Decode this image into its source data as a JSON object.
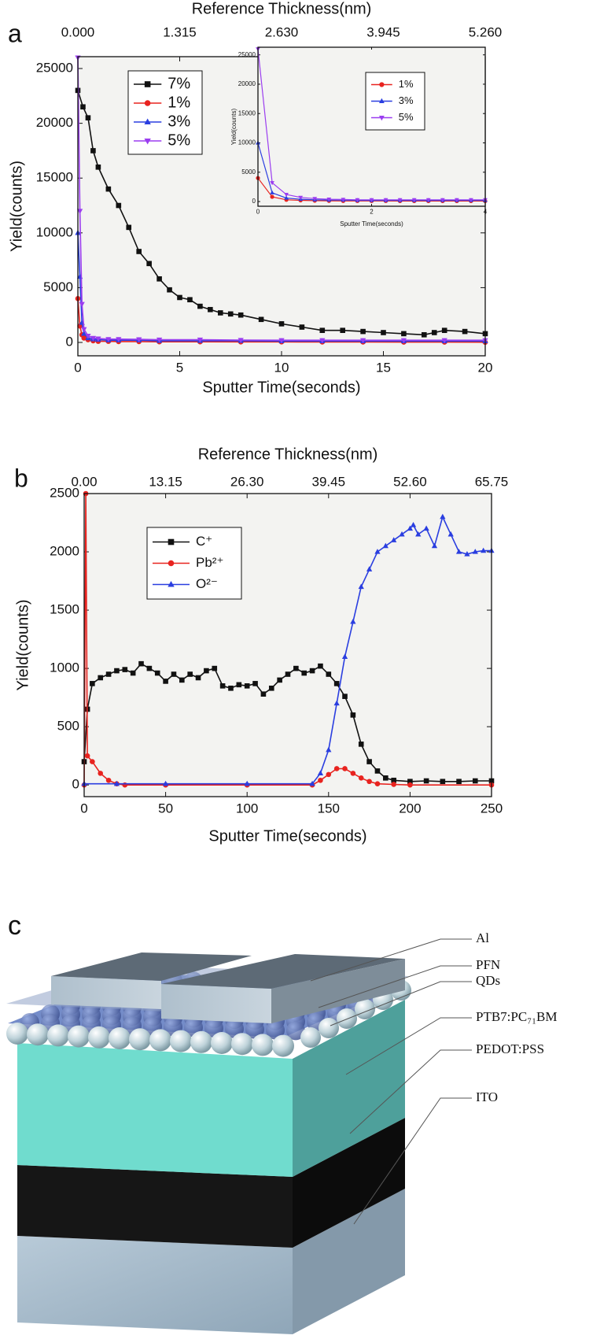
{
  "chart_data": [
    {
      "type": "line",
      "panel_label": "a",
      "xlabel": "Sputter Time(seconds)",
      "ylabel": "Yield(counts)",
      "x2label": "Reference Thickness(nm)",
      "xlim": [
        0,
        20
      ],
      "ylim": [
        -1220,
        26080
      ],
      "x2lim": [
        0,
        5.26
      ],
      "xticks": [
        0,
        5,
        10,
        15,
        20
      ],
      "yticks": [
        0,
        5000,
        10000,
        15000,
        20000,
        25000
      ],
      "x2ticks": [
        {
          "value": 0,
          "label": "0.000"
        },
        1.315,
        {
          "value": 2.63,
          "label": "2.630"
        },
        3.945,
        {
          "value": 5.26,
          "label": "5.260"
        }
      ],
      "legend": "upper left",
      "series": [
        {
          "name": "7%",
          "color": "#111111",
          "marker": "square",
          "x": [
            0,
            0.25,
            0.5,
            0.75,
            1,
            1.5,
            2,
            2.5,
            3,
            3.5,
            4,
            4.5,
            5,
            5.5,
            6,
            6.5,
            7,
            7.5,
            8,
            9,
            10,
            11,
            12,
            13,
            14,
            15,
            16,
            17,
            17.5,
            18,
            19,
            20
          ],
          "values": [
            23000,
            21500,
            20500,
            17500,
            16000,
            14000,
            12500,
            10500,
            8300,
            7200,
            5800,
            4800,
            4100,
            3900,
            3300,
            3000,
            2700,
            2600,
            2500,
            2100,
            1700,
            1400,
            1100,
            1100,
            1000,
            900,
            800,
            700,
            900,
            1100,
            1000,
            800
          ]
        },
        {
          "name": "1%",
          "color": "#e8231f",
          "marker": "circle",
          "x": [
            0,
            0.1,
            0.2,
            0.3,
            0.5,
            0.75,
            1,
            1.5,
            2,
            3,
            4,
            6,
            8,
            10,
            12,
            14,
            16,
            18,
            20
          ],
          "values": [
            4000,
            1500,
            700,
            400,
            250,
            150,
            100,
            100,
            80,
            80,
            60,
            60,
            50,
            50,
            40,
            40,
            30,
            30,
            20
          ]
        },
        {
          "name": "3%",
          "color": "#2a3ee0",
          "marker": "triangle",
          "x": [
            0,
            0.1,
            0.2,
            0.3,
            0.5,
            0.75,
            1,
            1.5,
            2,
            3,
            4,
            6,
            8,
            10,
            12,
            14,
            16,
            18,
            20
          ],
          "values": [
            10000,
            6000,
            1800,
            800,
            400,
            300,
            250,
            200,
            200,
            200,
            150,
            150,
            150,
            120,
            120,
            120,
            120,
            120,
            120
          ]
        },
        {
          "name": "5%",
          "color": "#9b3df0",
          "marker": "triangle-down",
          "x": [
            0,
            0.1,
            0.2,
            0.3,
            0.5,
            0.75,
            1,
            1.5,
            2,
            3,
            4,
            6,
            8,
            10,
            12,
            14,
            16,
            18,
            20
          ],
          "values": [
            26000,
            12000,
            3500,
            1200,
            600,
            400,
            350,
            300,
            300,
            280,
            250,
            250,
            220,
            200,
            200,
            200,
            200,
            200,
            200
          ]
        }
      ]
    },
    {
      "type": "line",
      "xlabel": "Sputter Time(seconds)",
      "ylabel": "Yield(counts)",
      "xlim": [
        0,
        4
      ],
      "ylim": [
        -800,
        26300
      ],
      "xticks": [
        0,
        2,
        4
      ],
      "yticks": [
        0,
        5000,
        10000,
        15000,
        20000,
        25000
      ],
      "legend": "upper center",
      "series": [
        {
          "name": "1%",
          "color": "#e8231f",
          "marker": "circle",
          "x": [
            0,
            0.25,
            0.5,
            0.75,
            1,
            1.25,
            1.5,
            1.75,
            2,
            2.25,
            2.5,
            2.75,
            3,
            3.25,
            3.5,
            3.75,
            4
          ],
          "values": [
            4000,
            800,
            300,
            200,
            150,
            120,
            100,
            100,
            100,
            100,
            90,
            90,
            80,
            80,
            80,
            80,
            80
          ]
        },
        {
          "name": "3%",
          "color": "#2a3ee0",
          "marker": "triangle",
          "x": [
            0,
            0.25,
            0.5,
            0.75,
            1,
            1.25,
            1.5,
            1.75,
            2,
            2.25,
            2.5,
            2.75,
            3,
            3.25,
            3.5,
            3.75,
            4
          ],
          "values": [
            10000,
            1500,
            600,
            400,
            300,
            250,
            250,
            200,
            200,
            200,
            200,
            200,
            200,
            200,
            200,
            200,
            200
          ]
        },
        {
          "name": "5%",
          "color": "#9b3df0",
          "marker": "triangle-down",
          "x": [
            0,
            0.25,
            0.5,
            0.75,
            1,
            1.25,
            1.5,
            1.75,
            2,
            2.25,
            2.5,
            2.75,
            3,
            3.25,
            3.5,
            3.75,
            4
          ],
          "values": [
            26000,
            3200,
            1200,
            700,
            500,
            400,
            350,
            300,
            300,
            300,
            300,
            300,
            300,
            300,
            300,
            300,
            300
          ]
        }
      ]
    },
    {
      "type": "line",
      "panel_label": "b",
      "xlabel": "Sputter Time(seconds)",
      "ylabel": "Yield(counts)",
      "x2label": "Reference Thickness(nm)",
      "xlim": [
        0,
        250
      ],
      "ylim": [
        -100,
        2500
      ],
      "x2lim": [
        0,
        65.75
      ],
      "xticks": [
        0,
        50,
        100,
        150,
        200,
        250
      ],
      "yticks": [
        0,
        500,
        1000,
        1500,
        2000,
        2500
      ],
      "x2ticks": [
        {
          "value": 0,
          "label": "0.00"
        },
        13.15,
        {
          "value": 26.3,
          "label": "26.30"
        },
        39.45,
        {
          "value": 52.6,
          "label": "52.60"
        },
        65.75
      ],
      "legend": "upper left",
      "series": [
        {
          "name": "C⁺",
          "color": "#111111",
          "marker": "square",
          "x": [
            0,
            2,
            5,
            10,
            15,
            20,
            25,
            30,
            35,
            40,
            45,
            50,
            55,
            60,
            65,
            70,
            75,
            80,
            85,
            90,
            95,
            100,
            105,
            110,
            115,
            120,
            125,
            130,
            135,
            140,
            145,
            150,
            155,
            160,
            165,
            170,
            175,
            180,
            185,
            190,
            200,
            210,
            220,
            230,
            240,
            250
          ],
          "values": [
            200,
            650,
            870,
            920,
            950,
            980,
            990,
            960,
            1040,
            1000,
            960,
            890,
            950,
            900,
            950,
            920,
            980,
            1000,
            850,
            830,
            860,
            850,
            870,
            780,
            830,
            900,
            950,
            1000,
            960,
            980,
            1020,
            950,
            870,
            760,
            600,
            350,
            200,
            120,
            60,
            40,
            30,
            35,
            30,
            30,
            35,
            35
          ]
        },
        {
          "name": "Pb²⁺",
          "color": "#e8231f",
          "marker": "circle",
          "x": [
            0,
            1,
            2,
            5,
            10,
            15,
            20,
            25,
            50,
            100,
            140,
            145,
            150,
            155,
            160,
            165,
            170,
            175,
            180,
            190,
            200,
            250
          ],
          "values": [
            0,
            2500,
            250,
            200,
            100,
            40,
            10,
            0,
            0,
            0,
            0,
            40,
            90,
            140,
            140,
            100,
            60,
            30,
            10,
            5,
            0,
            0
          ]
        },
        {
          "name": "O²⁻",
          "color": "#2a3ee0",
          "marker": "triangle",
          "x": [
            0,
            20,
            50,
            100,
            140,
            145,
            150,
            155,
            160,
            165,
            170,
            175,
            180,
            185,
            190,
            195,
            200,
            202,
            205,
            210,
            215,
            220,
            225,
            230,
            235,
            240,
            245,
            250
          ],
          "values": [
            10,
            10,
            10,
            10,
            10,
            100,
            300,
            700,
            1100,
            1400,
            1700,
            1850,
            2000,
            2050,
            2100,
            2150,
            2200,
            2230,
            2150,
            2200,
            2050,
            2300,
            2150,
            2000,
            1980,
            2000,
            2010,
            2010
          ]
        }
      ]
    }
  ],
  "diagram": {
    "panel_label": "c",
    "labels": [
      "Al",
      "PFN",
      "QDs",
      "PTB7:PC₇₁BM",
      "PEDOT:PSS",
      "ITO"
    ]
  }
}
